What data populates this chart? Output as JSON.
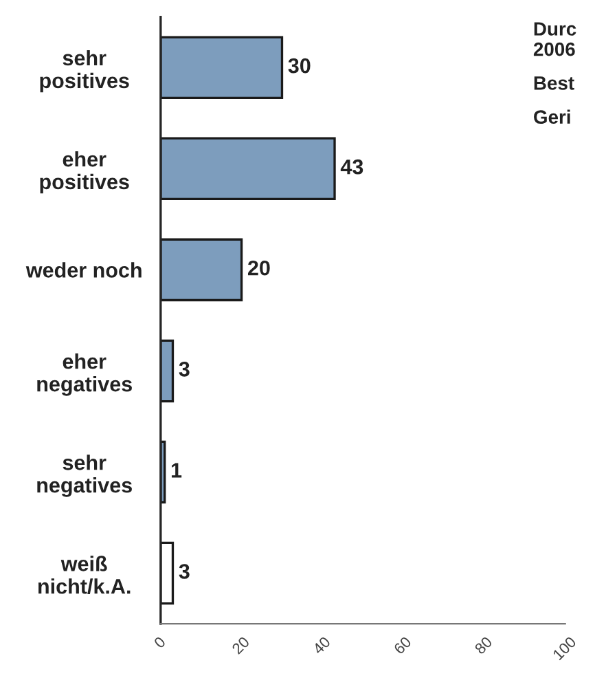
{
  "chart_data": {
    "type": "bar",
    "orientation": "horizontal",
    "categories": [
      "sehr\npositives",
      "eher\npositives",
      "weder noch",
      "eher\nnegatives",
      "sehr\nnegatives",
      "weiß\nnicht/k.A."
    ],
    "values": [
      30,
      43,
      20,
      3,
      1,
      3
    ],
    "colors": [
      "#7d9dbd",
      "#7d9dbd",
      "#7d9dbd",
      "#7d9dbd",
      "#7d9dbd",
      "#ffffff"
    ],
    "xlim": [
      0,
      100
    ],
    "xticks": [
      0,
      20,
      40,
      60,
      80,
      100
    ],
    "data_labels": true,
    "grid": false,
    "legend": false,
    "annotations": [
      "Durc",
      "2006",
      "Best",
      "Geri"
    ]
  }
}
